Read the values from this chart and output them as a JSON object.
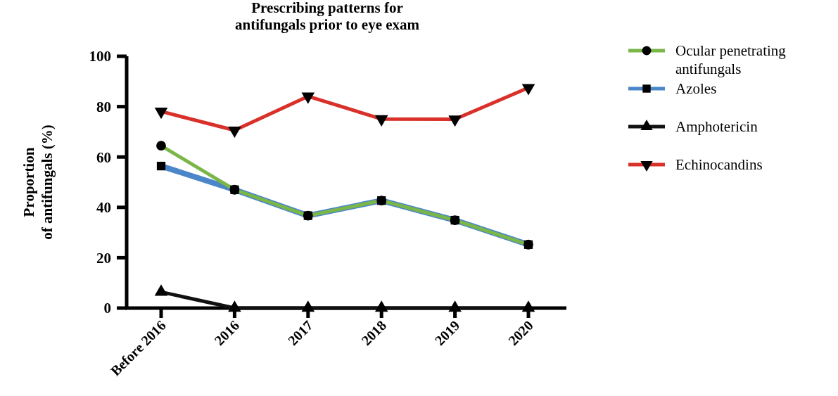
{
  "chart_data": {
    "type": "line",
    "title": "Prescribing patterns for\nantifungals prior to eye exam",
    "ylabel": "Proportion\nof antifungals (%)",
    "categories": [
      "Before 2016",
      "2016",
      "2017",
      "2018",
      "2019",
      "2020"
    ],
    "ylim": [
      0,
      100
    ],
    "yticks": [
      0,
      20,
      40,
      60,
      80,
      100
    ],
    "grid": false,
    "legend": "right",
    "line_style": "solid",
    "series": [
      {
        "name": "Ocular penetrating\nantifungals",
        "color": "#7ab648",
        "marker": "circle",
        "values": [
          64.5,
          47,
          36.7,
          42.7,
          34.9,
          25.2
        ]
      },
      {
        "name": "Azoles",
        "color": "#4a86c8",
        "marker": "square",
        "values": [
          56.4,
          47,
          36.7,
          42.7,
          34.9,
          25.2
        ]
      },
      {
        "name": "Amphotericin",
        "color": "#111111",
        "marker": "triangle",
        "values": [
          6.4,
          0,
          0,
          0,
          0,
          0
        ]
      },
      {
        "name": "Echinocandins",
        "color": "#d9302a",
        "marker": "triangle-down",
        "values": [
          78.1,
          70.6,
          84.1,
          75.1,
          75,
          87.5
        ]
      }
    ]
  }
}
